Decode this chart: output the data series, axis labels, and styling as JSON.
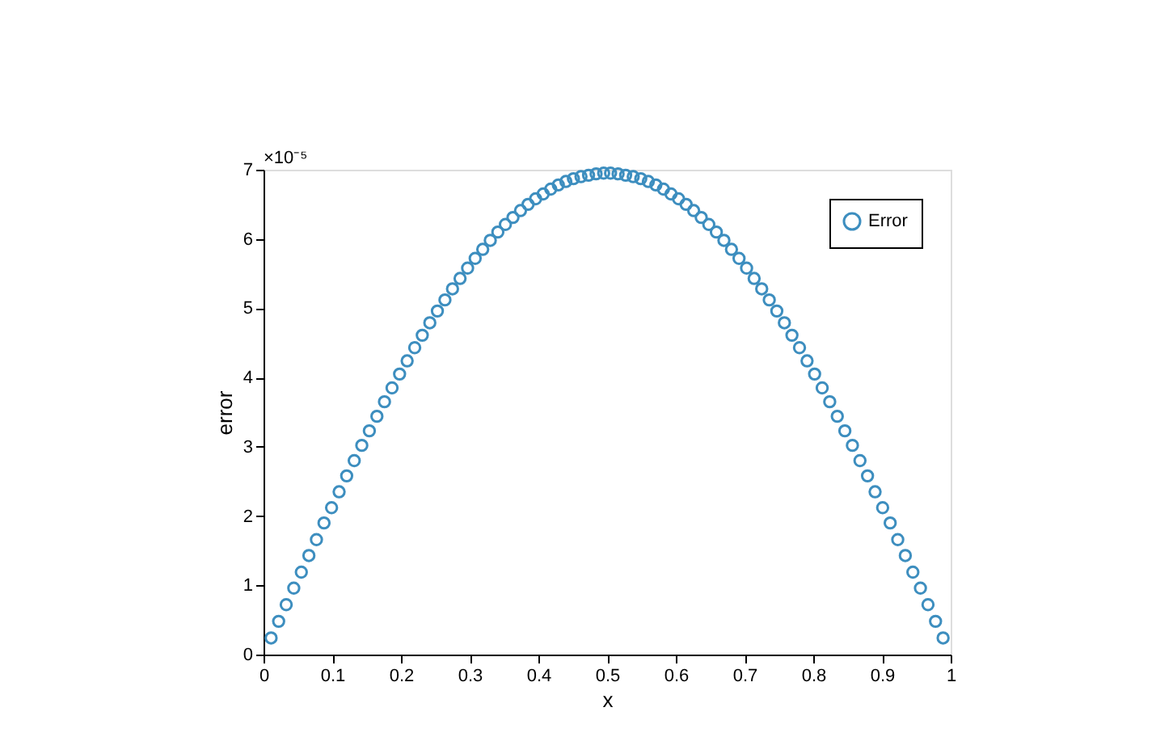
{
  "chart_data": {
    "type": "scatter",
    "xlabel": "x",
    "ylabel": "error",
    "annotations": [
      "×10⁻⁵"
    ],
    "xlim": [
      0,
      1
    ],
    "xticks": [
      0,
      0.1,
      0.2,
      0.3,
      0.4,
      0.5,
      0.6,
      0.7,
      0.8,
      0.9,
      1
    ],
    "ylim": [
      0,
      7
    ],
    "yticks": [
      0,
      1,
      2,
      3,
      4,
      5,
      6,
      7
    ],
    "grid": false,
    "legend": "top right",
    "marker": "circle",
    "x": [
      0.011,
      0.022,
      0.033,
      0.044,
      0.055,
      0.066,
      0.077,
      0.088,
      0.099,
      0.11,
      0.121,
      0.132,
      0.143,
      0.154,
      0.165,
      0.176,
      0.187,
      0.198,
      0.209,
      0.22,
      0.231,
      0.242,
      0.253,
      0.264,
      0.275,
      0.286,
      0.297,
      0.308,
      0.319,
      0.33,
      0.341,
      0.352,
      0.363,
      0.374,
      0.385,
      0.396,
      0.407,
      0.418,
      0.429,
      0.44,
      0.451,
      0.462,
      0.473,
      0.484,
      0.495,
      0.505,
      0.516,
      0.527,
      0.538,
      0.549,
      0.56,
      0.571,
      0.582,
      0.593,
      0.604,
      0.615,
      0.626,
      0.637,
      0.648,
      0.659,
      0.67,
      0.681,
      0.692,
      0.703,
      0.714,
      0.725,
      0.736,
      0.747,
      0.758,
      0.769,
      0.78,
      0.791,
      0.802,
      0.813,
      0.824,
      0.835,
      0.846,
      0.857,
      0.868,
      0.879,
      0.89,
      0.901,
      0.912,
      0.923,
      0.934,
      0.945,
      0.956,
      0.967,
      0.978,
      0.989
    ],
    "series": [
      {
        "name": "Error",
        "color": "#3d8ebf",
        "values": [
          0.24,
          0.48,
          0.72,
          0.96,
          1.19,
          1.43,
          1.66,
          1.9,
          2.12,
          2.35,
          2.58,
          2.8,
          3.02,
          3.23,
          3.44,
          3.65,
          3.85,
          4.05,
          4.24,
          4.43,
          4.61,
          4.79,
          4.96,
          5.12,
          5.28,
          5.43,
          5.58,
          5.72,
          5.85,
          5.98,
          6.1,
          6.21,
          6.31,
          6.41,
          6.5,
          6.58,
          6.65,
          6.72,
          6.78,
          6.83,
          6.87,
          6.9,
          6.92,
          6.94,
          6.95,
          6.95,
          6.94,
          6.92,
          6.9,
          6.87,
          6.83,
          6.78,
          6.72,
          6.65,
          6.58,
          6.5,
          6.41,
          6.31,
          6.21,
          6.1,
          5.98,
          5.85,
          5.72,
          5.58,
          5.43,
          5.28,
          5.12,
          4.96,
          4.79,
          4.61,
          4.43,
          4.24,
          4.05,
          3.85,
          3.65,
          3.44,
          3.23,
          3.02,
          2.8,
          2.58,
          2.35,
          2.12,
          1.9,
          1.66,
          1.43,
          1.19,
          0.96,
          0.72,
          0.48,
          0.24
        ]
      }
    ]
  }
}
